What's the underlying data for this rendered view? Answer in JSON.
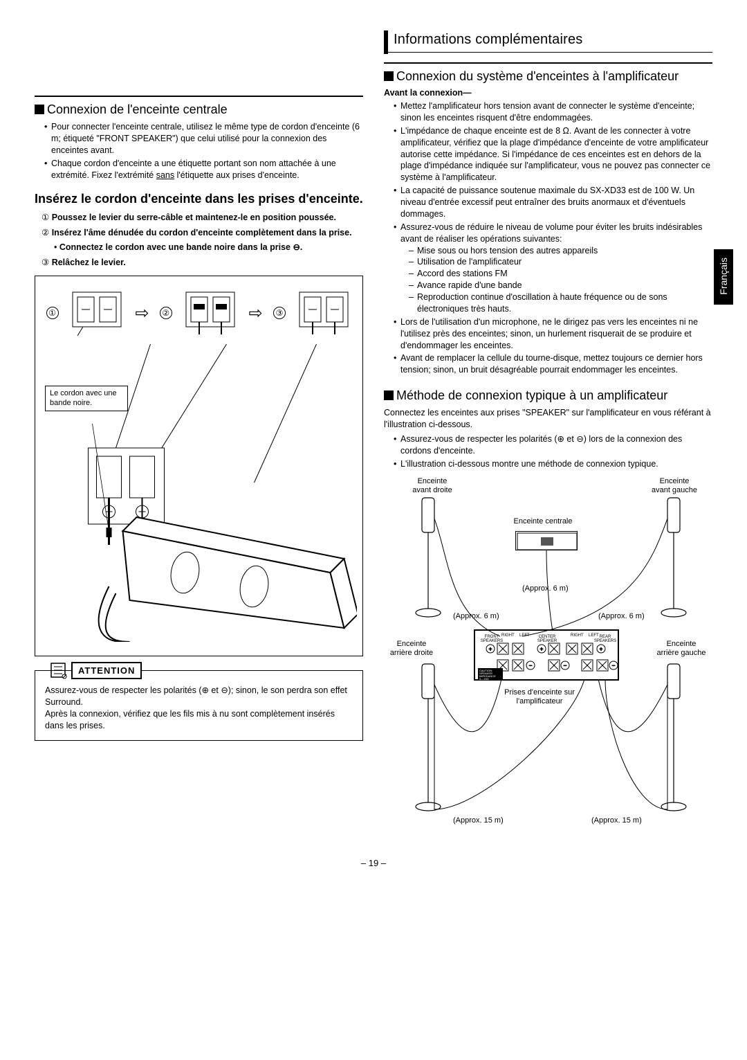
{
  "page_number": "– 19 –",
  "language_tab": "Français",
  "info_header": "Informations complémentaires",
  "left": {
    "h_center": "Connexion de l'enceinte centrale",
    "center_bullets": [
      "Pour connecter l'enceinte centrale, utilisez le même type de cordon d'enceinte (6 m; étiqueté \"FRONT SPEAKER\") que celui utilisé pour la connexion des enceintes avant.",
      "Chaque cordon d'enceinte a une étiquette portant son nom attachée à une extrémité. Fixez l'extrémité "
    ],
    "center_b2_tail": " l'étiquette aux prises d'enceinte.",
    "center_b2_underline": "sans",
    "insert_head": "Insérez le cordon d'enceinte dans les prises d'enceinte.",
    "step1_num": "①",
    "step1": "Poussez le levier du serre-câble et maintenez-le en position poussée.",
    "step2_num": "②",
    "step2": "Insérez l'âme dénudée du cordon d'enceinte complètement dans la prise.",
    "step2_sub": "Connectez le cordon avec une bande noire dans la prise ⊖.",
    "step3_num": "③",
    "step3": "Relâchez le levier.",
    "d_labels": {
      "a": "①",
      "b": "②",
      "c": "③"
    },
    "callout": "Le cordon avec une bande noire.",
    "attention_label": "ATTENTION",
    "attention_p1": "Assurez-vous de respecter les polarités (⊕ et ⊖); sinon, le son perdra son effet Surround.",
    "attention_p2": "Après la connexion, vérifiez que les fils mis à nu sont complètement insérés dans les prises."
  },
  "right": {
    "h_sys": "Connexion du système d'enceintes à l'amplificateur",
    "before_label": "Avant la connexion—",
    "sys_bullets": [
      "Mettez l'amplificateur hors tension avant de connecter le système d'enceinte; sinon les enceintes risquent d'être endommagées.",
      "L'impédance de chaque enceinte est de 8 Ω. Avant de les connecter à votre amplificateur, vérifiez que la plage d'impédance d'enceinte de votre amplificateur autorise cette impédance. Si l'impédance de ces enceintes est en dehors de la plage d'impédance indiquée sur l'amplificateur, vous ne pouvez pas connecter ce système à l'amplificateur.",
      "La capacité de puissance soutenue maximale du SX-XD33 est de 100 W. Un niveau d'entrée excessif peut entraîner des bruits anormaux et d'éventuels dommages.",
      "Assurez-vous de réduire le niveau de volume pour éviter les bruits indésirables avant de réaliser les opérations suivantes:"
    ],
    "vol_dashes": [
      "Mise sous ou hors tension des autres appareils",
      "Utilisation de l'amplificateur",
      "Accord des stations FM",
      "Avance rapide d'une bande",
      "Reproduction continue d'oscillation à haute fréquence ou de sons électroniques très hauts."
    ],
    "sys_bullets2": [
      "Lors de l'utilisation d'un microphone, ne le dirigez pas vers les enceintes ni ne l'utilisez près des enceintes; sinon, un hurlement risquerait de se produire et d'endommager les enceintes.",
      "Avant de remplacer la cellule du tourne-disque, mettez toujours ce dernier hors tension; sinon, un bruit désagréable pourrait endommager les enceintes."
    ],
    "h_method": "Méthode de connexion typique à un amplificateur",
    "method_p": "Connectez les enceintes aux prises \"SPEAKER\" sur l'amplificateur en vous référant à l'illustration ci-dessous.",
    "method_bullets": [
      "Assurez-vous de respecter les polarités (⊕ et ⊖) lors de la connexion des cordons d'enceinte.",
      "L'illustration ci-dessous montre une méthode de connexion typique."
    ],
    "diagram": {
      "front_right": "Enceinte\navant droite",
      "front_left": "Enceinte\navant gauche",
      "center": "Enceinte centrale",
      "rear_right": "Enceinte\narrière droite",
      "rear_left": "Enceinte\narrière gauche",
      "amp_label": "Prises d'enceinte sur\nl'amplificateur",
      "len6": "(Approx. 6 m)",
      "len15": "(Approx. 15 m)",
      "amp_tiny_front": "FRONT\nSPEAKERS",
      "amp_tiny_center": "CENTER\nSPEAKER",
      "amp_tiny_rear": "REAR\nSPEAKERS",
      "amp_tiny_r": "RIGHT",
      "amp_tiny_l": "LEFT",
      "amp_caution": "CAUTION:\nSPEAKER\nIMPEDANCE\n6—16Ω"
    }
  }
}
